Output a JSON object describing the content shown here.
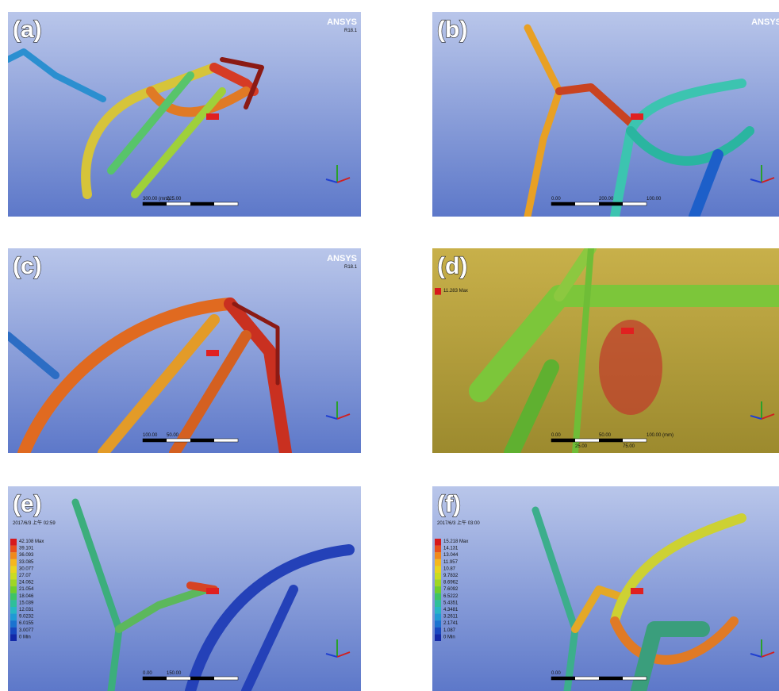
{
  "panels": [
    {
      "label": "(a)",
      "logo": "ANSYS",
      "version": "R18.1",
      "scale_labels": [
        "300.00 (mm)",
        "225.00"
      ]
    },
    {
      "label": "(b)",
      "logo": "ANSYS",
      "scale_labels": [
        "0.00",
        "200.00",
        "100.00"
      ]
    },
    {
      "label": "(c)",
      "logo": "ANSYS",
      "version": "R18.1",
      "scale_labels": [
        "100.00",
        "50.00"
      ]
    },
    {
      "label": "(d)",
      "legend": [
        "11.283 Max"
      ],
      "scale_labels": [
        "0.00",
        "50.00",
        "100.00 (mm)",
        "25.00",
        "75.00"
      ]
    },
    {
      "label": "(e)",
      "date": "2017/6/3 上午 02:59",
      "legend": [
        "42.108 Max",
        "39.101",
        "36.093",
        "33.085",
        "30.077",
        "27.07",
        "24.062",
        "21.054",
        "18.046",
        "15.039",
        "12.031",
        "9.0232",
        "6.0155",
        "3.0077",
        "0 Min"
      ],
      "scale_labels": [
        "0.00",
        "150.00"
      ]
    },
    {
      "label": "(f)",
      "date": "2017/6/3 上午 03:00",
      "legend": [
        "15.218 Max",
        "14.131",
        "13.044",
        "11.957",
        "10.87",
        "9.7832",
        "8.6962",
        "7.6092",
        "6.5222",
        "5.4351",
        "4.3481",
        "3.2611",
        "2.1741",
        "1.087",
        "0 Min"
      ],
      "scale_labels": [
        "0.00"
      ]
    }
  ]
}
